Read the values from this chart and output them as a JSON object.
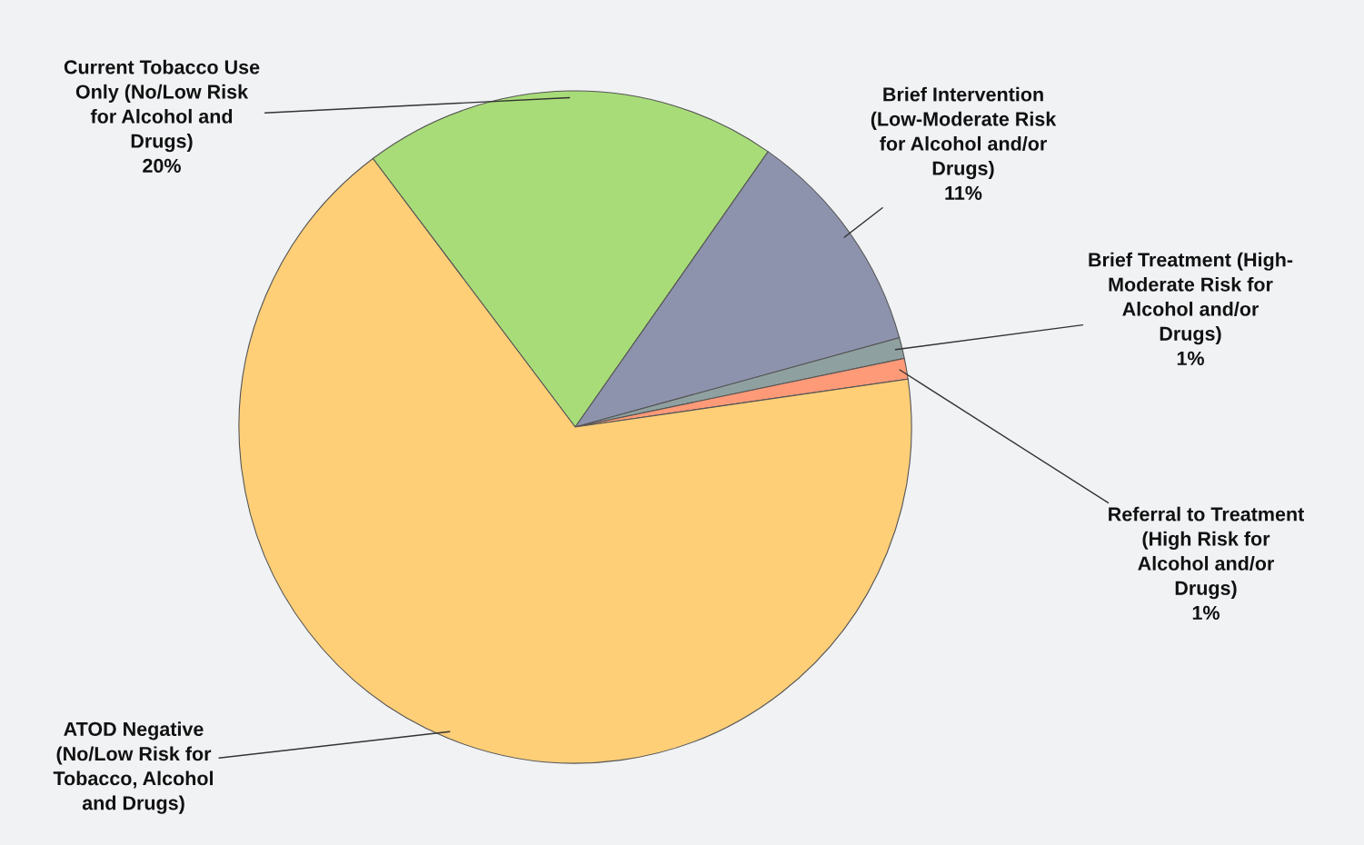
{
  "chart_data": {
    "type": "pie",
    "categories": [
      "Current Tobacco Use\nOnly (No/Low Risk\nfor Alcohol and\nDrugs)",
      "Brief Intervention\n(Low-Moderate Risk\nfor Alcohol and/or\nDrugs)",
      "Brief Treatment (High-\nModerate Risk for\nAlcohol and/or\nDrugs)",
      "Referral to Treatment\n(High Risk for\nAlcohol and/or\nDrugs)",
      "ATOD Negative\n(No/Low Risk for\nTobacco, Alcohol\nand Drugs)"
    ],
    "values": [
      20,
      11,
      1,
      1,
      67
    ],
    "value_labels": [
      "20%",
      "11%",
      "1%",
      "1%",
      null
    ],
    "colors": [
      "#a8dc78",
      "#8e93ad",
      "#8fa0a0",
      "#ff9a78",
      "#ffcf78"
    ],
    "legend": false
  }
}
